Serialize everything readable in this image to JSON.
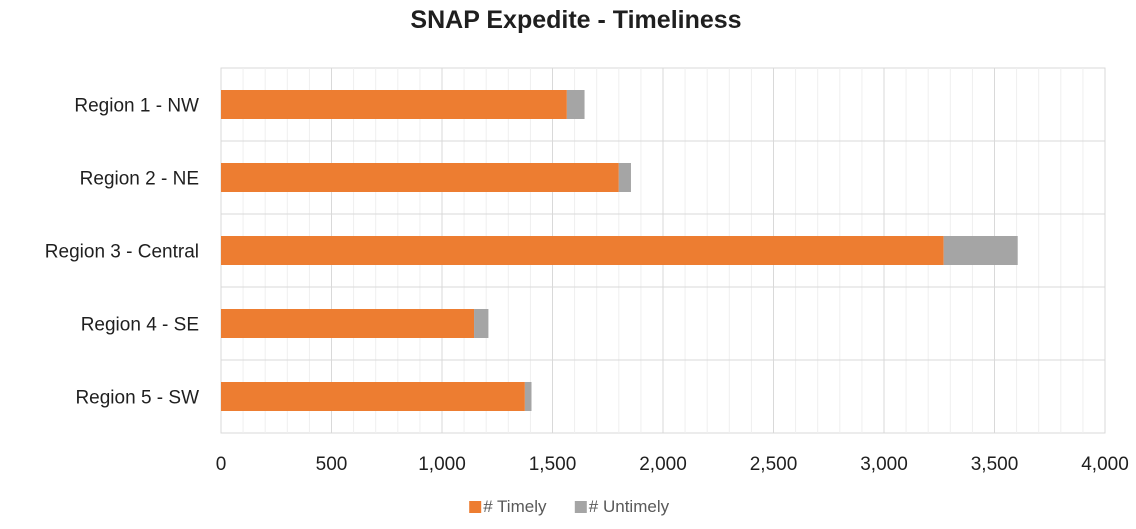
{
  "chart_data": {
    "type": "bar",
    "orientation": "horizontal",
    "stacked": true,
    "title": "SNAP Expedite - Timeliness",
    "categories": [
      "Region 1 - NW",
      "Region 2 - NE",
      "Region 3 - Central",
      "Region 4 - SE",
      "Region 5 - SW"
    ],
    "series": [
      {
        "name": "# Timely",
        "color": "#ed7d31",
        "values": [
          1565,
          1800,
          3270,
          1145,
          1375
        ]
      },
      {
        "name": "# Untimely",
        "color": "#a5a5a5",
        "values": [
          80,
          55,
          335,
          65,
          30
        ]
      }
    ],
    "xlim": [
      0,
      4000
    ],
    "x_ticks": [
      0,
      500,
      1000,
      1500,
      2000,
      2500,
      3000,
      3500,
      4000
    ],
    "x_tick_labels": [
      "0",
      "500",
      "1,000",
      "1,500",
      "2,000",
      "2,500",
      "3,000",
      "3,500",
      "4,000"
    ],
    "grid": true,
    "legend": "bottom"
  }
}
